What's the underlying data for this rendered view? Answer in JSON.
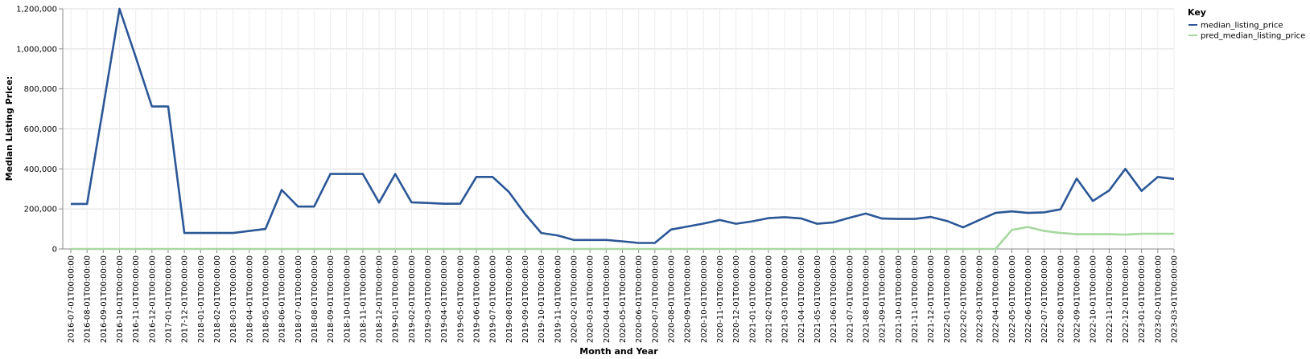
{
  "chart_data": {
    "type": "line",
    "xlabel": "Month and Year",
    "ylabel": "Median Listing Price:",
    "ylim": [
      0,
      1200000
    ],
    "yticks": [
      "0",
      "200,000",
      "400,000",
      "600,000",
      "800,000",
      "1,000,000",
      "1,200,000"
    ],
    "grid": true,
    "legend": {
      "title": "Key",
      "position": "top-right"
    },
    "categories": [
      "2016-07-01T00:00:00",
      "2016-08-01T00:00:00",
      "2016-09-01T00:00:00",
      "2016-10-01T00:00:00",
      "2016-11-01T00:00:00",
      "2016-12-01T00:00:00",
      "2017-01-01T00:00:00",
      "2017-12-01T00:00:00",
      "2018-01-01T00:00:00",
      "2018-02-01T00:00:00",
      "2018-03-01T00:00:00",
      "2018-04-01T00:00:00",
      "2018-05-01T00:00:00",
      "2018-06-01T00:00:00",
      "2018-07-01T00:00:00",
      "2018-08-01T00:00:00",
      "2018-09-01T00:00:00",
      "2018-10-01T00:00:00",
      "2018-11-01T00:00:00",
      "2018-12-01T00:00:00",
      "2019-01-01T00:00:00",
      "2019-02-01T00:00:00",
      "2019-03-01T00:00:00",
      "2019-04-01T00:00:00",
      "2019-05-01T00:00:00",
      "2019-06-01T00:00:00",
      "2019-07-01T00:00:00",
      "2019-08-01T00:00:00",
      "2019-09-01T00:00:00",
      "2019-10-01T00:00:00",
      "2019-11-01T00:00:00",
      "2020-02-01T00:00:00",
      "2020-03-01T00:00:00",
      "2020-04-01T00:00:00",
      "2020-05-01T00:00:00",
      "2020-06-01T00:00:00",
      "2020-07-01T00:00:00",
      "2020-08-01T00:00:00",
      "2020-09-01T00:00:00",
      "2020-10-01T00:00:00",
      "2020-11-01T00:00:00",
      "2020-12-01T00:00:00",
      "2021-01-01T00:00:00",
      "2021-02-01T00:00:00",
      "2021-03-01T00:00:00",
      "2021-04-01T00:00:00",
      "2021-05-01T00:00:00",
      "2021-06-01T00:00:00",
      "2021-07-01T00:00:00",
      "2021-08-01T00:00:00",
      "2021-09-01T00:00:00",
      "2021-10-01T00:00:00",
      "2021-11-01T00:00:00",
      "2021-12-01T00:00:00",
      "2022-01-01T00:00:00",
      "2022-02-01T00:00:00",
      "2022-03-01T00:00:00",
      "2022-04-01T00:00:00",
      "2022-05-01T00:00:00",
      "2022-06-01T00:00:00",
      "2022-07-01T00:00:00",
      "2022-08-01T00:00:00",
      "2022-09-01T00:00:00",
      "2022-10-01T00:00:00",
      "2022-11-01T00:00:00",
      "2022-12-01T00:00:00",
      "2023-01-01T00:00:00",
      "2023-02-01T00:00:00",
      "2023-03-01T00:00:00"
    ],
    "series": [
      {
        "name": "median_listing_price",
        "color": "#2b5797",
        "values": [
          225000,
          225000,
          710000,
          1200000,
          960000,
          712000,
          712000,
          80000,
          80000,
          80000,
          80000,
          90000,
          100000,
          295000,
          212000,
          212000,
          375000,
          375000,
          375000,
          232000,
          375000,
          233000,
          230000,
          226000,
          226000,
          360000,
          360000,
          285000,
          175000,
          80000,
          68000,
          45000,
          45000,
          45000,
          38000,
          30000,
          30000,
          97000,
          112000,
          127000,
          145000,
          126000,
          138000,
          154000,
          159000,
          153000,
          126000,
          133000,
          156000,
          177000,
          152000,
          150000,
          150000,
          160000,
          140000,
          108000,
          145000,
          180000,
          188000,
          180000,
          183000,
          198000,
          352000,
          240000,
          292000,
          400000,
          290000,
          360000,
          350000
        ]
      },
      {
        "name": "pred_median_listing_price",
        "color": "#a6d8a0",
        "values": [
          0,
          0,
          0,
          0,
          0,
          0,
          0,
          0,
          0,
          0,
          0,
          0,
          0,
          0,
          0,
          0,
          0,
          0,
          0,
          0,
          0,
          0,
          0,
          0,
          0,
          0,
          0,
          0,
          0,
          0,
          0,
          0,
          0,
          0,
          0,
          0,
          0,
          0,
          0,
          0,
          0,
          0,
          0,
          0,
          0,
          0,
          0,
          0,
          0,
          0,
          0,
          0,
          0,
          0,
          0,
          0,
          0,
          0,
          95000,
          110000,
          90000,
          80000,
          74000,
          74000,
          74000,
          72000,
          76000,
          76000,
          76000
        ]
      }
    ]
  }
}
